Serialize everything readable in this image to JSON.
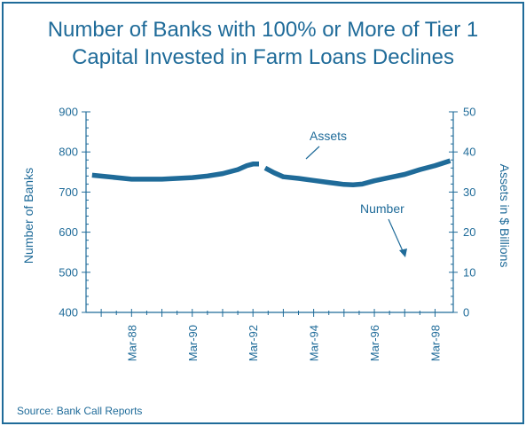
{
  "title_lines": [
    "Number of Banks with 100% or More of Tier 1",
    "Capital Invested in Farm Loans Declines"
  ],
  "source": "Source: Bank Call Reports",
  "colors": {
    "accent": "#1f6b99",
    "background": "#ffffff"
  },
  "chart_data": {
    "type": "line",
    "title": "Number of Banks with 100% or More of Tier 1 Capital Invested in Farm Loans Declines",
    "ylabel_left": "Number of Banks",
    "ylabel_right": "Assets in $ Billions",
    "ylim_left": [
      400,
      900
    ],
    "ylim_right": [
      0,
      50
    ],
    "yticks_left": [
      "400",
      "500",
      "600",
      "700",
      "800",
      "900"
    ],
    "yticks_right": [
      "0",
      "10",
      "20",
      "30",
      "40",
      "50"
    ],
    "x_range": [
      1986.5,
      1998.6
    ],
    "x_tick_labels": [
      "Mar-88",
      "Mar-90",
      "Mar-92",
      "Mar-94",
      "Mar-96",
      "Mar-98"
    ],
    "x_tick_years": [
      1988,
      1990,
      1992,
      1994,
      1996,
      1998
    ],
    "grid": false,
    "annotations": [
      "Assets",
      "Number"
    ],
    "series": [
      {
        "name": "Assets",
        "axis": "right",
        "x": [
          1986.7,
          1987.5,
          1988.0,
          1988.5,
          1989.0,
          1989.5,
          1990.0,
          1990.5,
          1991.0,
          1991.5,
          1991.8,
          1992.0,
          1992.2
        ],
        "y": [
          34.2,
          33.6,
          33.2,
          33.2,
          33.2,
          33.4,
          33.6,
          34.0,
          34.6,
          35.6,
          36.6,
          37.0,
          37.0
        ]
      },
      {
        "name": "Assets",
        "axis": "right",
        "x": [
          1992.4,
          1992.7,
          1993.0,
          1993.5,
          1994.0,
          1994.5,
          1995.0,
          1995.3,
          1995.6,
          1996.0,
          1996.5,
          1997.0,
          1997.5,
          1998.0,
          1998.5
        ],
        "y": [
          36.0,
          34.8,
          33.8,
          33.4,
          32.9,
          32.4,
          31.9,
          31.8,
          32.0,
          32.8,
          33.6,
          34.4,
          35.6,
          36.6,
          37.8
        ]
      }
    ]
  }
}
